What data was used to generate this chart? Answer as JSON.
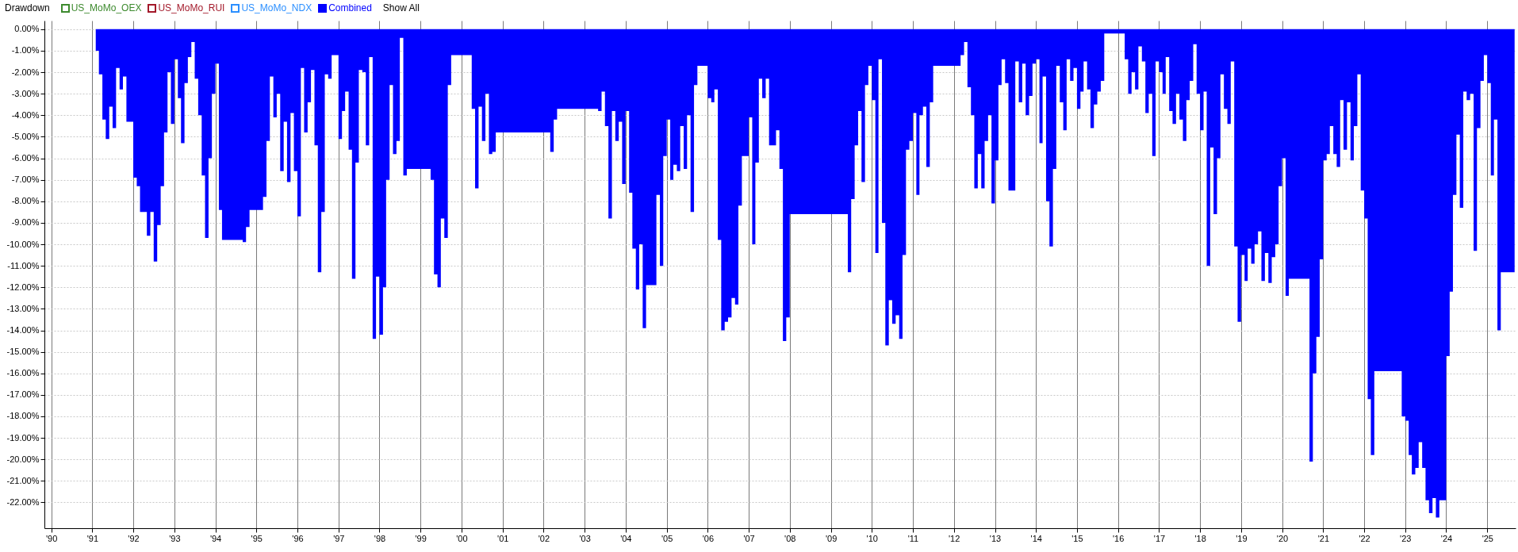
{
  "chart_data": {
    "type": "area",
    "title": "Drawdown",
    "annotations": [
      "Show All"
    ],
    "x": [
      "1991-02",
      "1991-03",
      "1991-04",
      "1991-05",
      "1991-06",
      "1991-07",
      "1991-08",
      "1991-09",
      "1991-10",
      "1991-11",
      "1992-01",
      "1992-02",
      "1992-03",
      "1992-05",
      "1992-06",
      "1992-07",
      "1992-08",
      "1992-09",
      "1992-10",
      "1992-11",
      "1992-12",
      "1993-01",
      "1993-02",
      "1993-03",
      "1993-04",
      "1993-05",
      "1993-06",
      "1993-07",
      "1993-08",
      "1993-09",
      "1993-10",
      "1993-11",
      "1993-12",
      "1994-01",
      "1994-02",
      "1994-03",
      "1994-09",
      "1994-10",
      "1994-11",
      "1995-03",
      "1995-04",
      "1995-05",
      "1995-06",
      "1995-07",
      "1995-08",
      "1995-09",
      "1995-10",
      "1995-11",
      "1995-12",
      "1996-01",
      "1996-02",
      "1996-03",
      "1996-04",
      "1996-05",
      "1996-06",
      "1996-07",
      "1996-08",
      "1996-09",
      "1996-10",
      "1996-11",
      "1997-01",
      "1997-02",
      "1997-03",
      "1997-04",
      "1997-05",
      "1997-06",
      "1997-07",
      "1997-08",
      "1997-09",
      "1997-10",
      "1997-11",
      "1997-12",
      "1998-01",
      "1998-02",
      "1998-03",
      "1998-04",
      "1998-05",
      "1998-06",
      "1998-07",
      "1998-08",
      "1998-09",
      "1999-04",
      "1999-05",
      "1999-06",
      "1999-07",
      "1999-08",
      "1999-09",
      "1999-10",
      "2000-04",
      "2000-05",
      "2000-06",
      "2000-07",
      "2000-08",
      "2000-09",
      "2000-10",
      "2000-11",
      "2002-03",
      "2002-04",
      "2002-05",
      "2003-05",
      "2003-06",
      "2003-07",
      "2003-08",
      "2003-09",
      "2003-10",
      "2003-11",
      "2003-12",
      "2004-01",
      "2004-02",
      "2004-03",
      "2004-04",
      "2004-05",
      "2004-06",
      "2004-07",
      "2004-10",
      "2004-11",
      "2004-12",
      "2005-01",
      "2005-02",
      "2005-03",
      "2005-04",
      "2005-05",
      "2005-06",
      "2005-07",
      "2005-08",
      "2005-09",
      "2005-10",
      "2006-01",
      "2006-02",
      "2006-03",
      "2006-04",
      "2006-05",
      "2006-06",
      "2006-07",
      "2006-08",
      "2006-09",
      "2006-10",
      "2006-11",
      "2007-01",
      "2007-02",
      "2007-03",
      "2007-04",
      "2007-05",
      "2007-06",
      "2007-07",
      "2007-09",
      "2007-10",
      "2007-11",
      "2007-12",
      "2008-01",
      "2009-06",
      "2009-07",
      "2009-08",
      "2009-09",
      "2009-10",
      "2009-11",
      "2009-12",
      "2010-01",
      "2010-02",
      "2010-03",
      "2010-04",
      "2010-05",
      "2010-06",
      "2010-07",
      "2010-08",
      "2010-09",
      "2010-10",
      "2010-11",
      "2010-12",
      "2011-01",
      "2011-02",
      "2011-03",
      "2011-04",
      "2011-05",
      "2011-06",
      "2011-07",
      "2012-03",
      "2012-04",
      "2012-05",
      "2012-06",
      "2012-07",
      "2012-08",
      "2012-09",
      "2012-10",
      "2012-11",
      "2012-12",
      "2013-01",
      "2013-02",
      "2013-03",
      "2013-04",
      "2013-05",
      "2013-07",
      "2013-08",
      "2013-09",
      "2013-10",
      "2013-11",
      "2013-12",
      "2014-01",
      "2014-02",
      "2014-03",
      "2014-04",
      "2014-05",
      "2014-06",
      "2014-07",
      "2014-08",
      "2014-09",
      "2014-10",
      "2014-11",
      "2014-12",
      "2015-01",
      "2015-02",
      "2015-03",
      "2015-04",
      "2015-05",
      "2015-06",
      "2015-07",
      "2015-08",
      "2015-09",
      "2016-03",
      "2016-04",
      "2016-05",
      "2016-06",
      "2016-07",
      "2016-08",
      "2016-09",
      "2016-10",
      "2016-11",
      "2016-12",
      "2017-01",
      "2017-02",
      "2017-03",
      "2017-04",
      "2017-05",
      "2017-06",
      "2017-07",
      "2017-08",
      "2017-09",
      "2017-10",
      "2017-11",
      "2017-12",
      "2018-01",
      "2018-02",
      "2018-03",
      "2018-04",
      "2018-05",
      "2018-06",
      "2018-07",
      "2018-08",
      "2018-09",
      "2018-10",
      "2018-11",
      "2018-12",
      "2019-01",
      "2019-02",
      "2019-03",
      "2019-04",
      "2019-05",
      "2019-06",
      "2019-07",
      "2019-08",
      "2019-09",
      "2019-10",
      "2019-11",
      "2019-12",
      "2020-01",
      "2020-02",
      "2020-03",
      "2020-09",
      "2020-10",
      "2020-11",
      "2020-12",
      "2021-01",
      "2021-02",
      "2021-03",
      "2021-04",
      "2021-05",
      "2021-06",
      "2021-07",
      "2021-08",
      "2021-09",
      "2021-10",
      "2021-11",
      "2021-12",
      "2022-01",
      "2022-02",
      "2022-03",
      "2022-04",
      "2022-12",
      "2023-01",
      "2023-02",
      "2023-03",
      "2023-04",
      "2023-05",
      "2023-06",
      "2023-07",
      "2023-08",
      "2023-09",
      "2023-10",
      "2023-11",
      "2024-01",
      "2024-02",
      "2024-03",
      "2024-04",
      "2024-05",
      "2024-06",
      "2024-07",
      "2024-08",
      "2024-09",
      "2024-10",
      "2024-11",
      "2024-12",
      "2025-01",
      "2025-02",
      "2025-03",
      "2025-04",
      "2025-05",
      "2025-09"
    ],
    "series": [
      {
        "name": "US_MoMo_OEX",
        "color": "#3d8a2e",
        "values": [
          null,
          null,
          null,
          null,
          null,
          null,
          null,
          null,
          null,
          null,
          null,
          null,
          null,
          null,
          null,
          null,
          null,
          null,
          null,
          null,
          null,
          null,
          null,
          null,
          null,
          null,
          null,
          null,
          null,
          null,
          null,
          null,
          null,
          null,
          null,
          null,
          null,
          null,
          null,
          null,
          null,
          null,
          null,
          null,
          null,
          null,
          null,
          null,
          null,
          null,
          null,
          null,
          null,
          null,
          null,
          null,
          null,
          null,
          null,
          null,
          null,
          null,
          null,
          null,
          null,
          null,
          null,
          null,
          null,
          null,
          null,
          null,
          null,
          null,
          null,
          null,
          null,
          null,
          null,
          null,
          null,
          null,
          null,
          null,
          null,
          null,
          null,
          null,
          null,
          null,
          null,
          null,
          null,
          null,
          null,
          null,
          null,
          null,
          null,
          null,
          null,
          null,
          null,
          null,
          null,
          null,
          null,
          null,
          null,
          null,
          null,
          null,
          null,
          null,
          null,
          null,
          null,
          null,
          null,
          null,
          null,
          null,
          null,
          null,
          null,
          null,
          null,
          null,
          null,
          null,
          null,
          null,
          null,
          null,
          null,
          null,
          null,
          null,
          null,
          null,
          null,
          null,
          null,
          null,
          null,
          null,
          null,
          null,
          null,
          null,
          null,
          null,
          null,
          null,
          null,
          null,
          null,
          null,
          null,
          null,
          null,
          null,
          null,
          null,
          null,
          null,
          null,
          null,
          null,
          null,
          null,
          null,
          null,
          null,
          null,
          null,
          null,
          null,
          null,
          null,
          null,
          null,
          null,
          null,
          null,
          null,
          null,
          null,
          null,
          null,
          null,
          null,
          null,
          null,
          null,
          null,
          null,
          null,
          null,
          null,
          null,
          null,
          null,
          null,
          null,
          null,
          null,
          null,
          null,
          null,
          null,
          null,
          null,
          null,
          null,
          null,
          null,
          null,
          null,
          null,
          null,
          null,
          null,
          null,
          null,
          null,
          null,
          null,
          null,
          null,
          null,
          null,
          null,
          null,
          null,
          null,
          null,
          null,
          null,
          null,
          null,
          null,
          null,
          null,
          null,
          null,
          null,
          null,
          null,
          null,
          null,
          null,
          null,
          null,
          null,
          null,
          null,
          null,
          null,
          null,
          null,
          null,
          null,
          null,
          null,
          null,
          null,
          null,
          null,
          null,
          null,
          null,
          null,
          null,
          null,
          null,
          null,
          null,
          null,
          null,
          null,
          null,
          null,
          null,
          null,
          null,
          null,
          null,
          null,
          null,
          null,
          null,
          null,
          null,
          null,
          null,
          null,
          null,
          null,
          null,
          null,
          null,
          null,
          null,
          null,
          null,
          null,
          null,
          null,
          null,
          null,
          null,
          null,
          null,
          null,
          null,
          null
        ]
      },
      {
        "name": "US_MoMo_RUI",
        "color": "#a3192a",
        "values": [
          null,
          null,
          null,
          null,
          null,
          null,
          null,
          null,
          null,
          null,
          null,
          null,
          null,
          null,
          null,
          null,
          null,
          null,
          null,
          null,
          null,
          null,
          null,
          null,
          null,
          null,
          null,
          null,
          null,
          null,
          null,
          null,
          null,
          null,
          null,
          null,
          null,
          null,
          null,
          null,
          null,
          null,
          null,
          null,
          null,
          null,
          null,
          null,
          null,
          null,
          null,
          null,
          null,
          null,
          null,
          null,
          null,
          null,
          null,
          null,
          null,
          null,
          null,
          null,
          null,
          null,
          null,
          null,
          null,
          null,
          null,
          null,
          null,
          null,
          null,
          null,
          null,
          null,
          null,
          null,
          null,
          null,
          null,
          null,
          null,
          null,
          null,
          null,
          null,
          null,
          null,
          null,
          null,
          null,
          null,
          null,
          null,
          null,
          null,
          null,
          null,
          null,
          null,
          null,
          null,
          null,
          null,
          null,
          null,
          null,
          null,
          null,
          null,
          null,
          null,
          null,
          null,
          null,
          null,
          null,
          null,
          null,
          null,
          null,
          null,
          null,
          null,
          null,
          null,
          null,
          null,
          null,
          null,
          null,
          null,
          null,
          null,
          null,
          null,
          null,
          null,
          null,
          null,
          null,
          null,
          null,
          null,
          null,
          null,
          null,
          null,
          null,
          null,
          null,
          null,
          null,
          null,
          null,
          null,
          null,
          null,
          null,
          null,
          null,
          null,
          null,
          null,
          null,
          null,
          null,
          null,
          null,
          null,
          null,
          null,
          null,
          null,
          null,
          null,
          null,
          null,
          null,
          null,
          null,
          null,
          null,
          null,
          null,
          null,
          null,
          null,
          null,
          null,
          null,
          null,
          null,
          null,
          null,
          null,
          null,
          null,
          null,
          null,
          null,
          null,
          null,
          null,
          null,
          null,
          null,
          null,
          null,
          null,
          null,
          null,
          null,
          null,
          null,
          null,
          null,
          null,
          null,
          null,
          null,
          null,
          null,
          null,
          null,
          null,
          null,
          null,
          null,
          null,
          null,
          null,
          null,
          null,
          null,
          null,
          null,
          null,
          null,
          null,
          null,
          null,
          null,
          null,
          null,
          null,
          null,
          null,
          null,
          null,
          null,
          null,
          null,
          null,
          null,
          null,
          null,
          null,
          null,
          null,
          null,
          null,
          null,
          null,
          null,
          null,
          null,
          null,
          null,
          null,
          null,
          null,
          null,
          null,
          null,
          null,
          null,
          null,
          null,
          null,
          null,
          null,
          null,
          null,
          null,
          null,
          null,
          null,
          null,
          null,
          null,
          null,
          null,
          null,
          null,
          null,
          null,
          null,
          null,
          null,
          null,
          null,
          null,
          null,
          null,
          null,
          null,
          null,
          null,
          null,
          null,
          null,
          null,
          null
        ]
      },
      {
        "name": "US_MoMo_NDX",
        "color": "#2b8fff",
        "values": [
          null,
          null,
          null,
          null,
          null,
          null,
          null,
          null,
          null,
          null,
          null,
          null,
          null,
          null,
          null,
          null,
          null,
          null,
          null,
          null,
          null,
          null,
          null,
          null,
          null,
          null,
          null,
          null,
          null,
          null,
          null,
          null,
          null,
          null,
          null,
          null,
          null,
          null,
          null,
          null,
          null,
          null,
          null,
          null,
          null,
          null,
          null,
          null,
          null,
          null,
          null,
          null,
          null,
          null,
          null,
          null,
          null,
          null,
          null,
          null,
          null,
          null,
          null,
          null,
          null,
          null,
          null,
          null,
          null,
          null,
          null,
          null,
          null,
          null,
          null,
          null,
          null,
          null,
          null,
          null,
          null,
          null,
          null,
          null,
          null,
          null,
          null,
          null,
          null,
          null,
          null,
          null,
          null,
          null,
          null,
          null,
          null,
          null,
          null,
          null,
          null,
          null,
          null,
          null,
          null,
          null,
          null,
          null,
          null,
          null,
          null,
          null,
          null,
          null,
          null,
          null,
          null,
          null,
          null,
          null,
          null,
          null,
          null,
          null,
          null,
          null,
          null,
          null,
          null,
          null,
          null,
          null,
          null,
          null,
          null,
          null,
          null,
          null,
          null,
          null,
          null,
          null,
          null,
          null,
          null,
          null,
          null,
          null,
          null,
          null,
          null,
          null,
          null,
          null,
          null,
          null,
          null,
          null,
          null,
          null,
          null,
          null,
          null,
          null,
          null,
          null,
          null,
          null,
          null,
          null,
          null,
          null,
          null,
          null,
          null,
          null,
          null,
          null,
          null,
          null,
          null,
          null,
          null,
          null,
          null,
          null,
          null,
          null,
          null,
          null,
          null,
          null,
          null,
          null,
          null,
          null,
          null,
          null,
          null,
          null,
          null,
          null,
          null,
          null,
          null,
          null,
          null,
          null,
          null,
          null,
          null,
          null,
          null,
          null,
          null,
          null,
          null,
          null,
          null,
          null,
          null,
          null,
          null,
          null,
          null,
          null,
          null,
          null,
          null,
          null,
          null,
          null,
          null,
          null,
          null,
          null,
          null,
          null,
          null,
          null,
          null,
          null,
          null,
          null,
          null,
          null,
          null,
          null,
          null,
          null,
          null,
          null,
          null,
          null,
          null,
          null,
          null,
          null,
          null,
          null,
          null,
          null,
          null,
          null,
          null,
          null,
          null,
          null,
          null,
          null,
          null,
          null,
          null,
          null,
          null,
          null,
          null,
          null,
          null,
          null,
          null,
          null,
          null,
          null,
          null,
          null,
          null,
          null,
          null,
          null,
          null,
          null,
          null,
          null,
          null,
          null,
          null,
          null,
          null,
          null,
          null,
          null,
          null,
          null,
          null,
          null,
          null,
          null,
          null,
          null,
          null,
          null,
          null,
          null,
          null,
          null,
          null
        ]
      },
      {
        "name": "Combined",
        "color": "#0000ff",
        "values": [
          -1.0,
          -2.1,
          -4.2,
          -5.1,
          -3.6,
          -4.6,
          -1.8,
          -2.8,
          -2.2,
          -4.3,
          -6.9,
          -7.3,
          -8.5,
          -9.6,
          -8.5,
          -10.8,
          -9.1,
          -7.3,
          -4.8,
          -2.0,
          -4.4,
          -1.4,
          -3.2,
          -5.3,
          -2.5,
          -1.3,
          -0.6,
          -2.3,
          -4.0,
          -6.8,
          -9.7,
          -6.0,
          -3.0,
          -1.6,
          -8.4,
          -9.8,
          -9.9,
          -9.2,
          -8.4,
          -7.8,
          -5.2,
          -2.2,
          -4.1,
          -3.0,
          -6.6,
          -4.3,
          -7.1,
          -3.9,
          -6.6,
          -8.7,
          -1.8,
          -4.8,
          -3.4,
          -1.9,
          -5.4,
          -11.3,
          -8.5,
          -2.1,
          -2.3,
          -1.2,
          -5.1,
          -3.8,
          -2.9,
          -5.6,
          -11.6,
          -6.2,
          -1.9,
          -2.0,
          -5.4,
          -1.3,
          -14.4,
          -11.5,
          -14.2,
          -12.0,
          -7.0,
          -2.6,
          -5.8,
          -5.2,
          -0.4,
          -6.8,
          -6.5,
          -7.0,
          -11.4,
          -12.0,
          -8.8,
          -9.7,
          -2.6,
          -1.2,
          -3.7,
          -7.4,
          -3.6,
          -5.2,
          -3.0,
          -5.8,
          -5.7,
          -4.8,
          -5.7,
          -4.2,
          -3.7,
          -3.8,
          -2.9,
          -4.5,
          -8.8,
          -3.8,
          -5.2,
          -4.3,
          -7.2,
          -3.8,
          -7.6,
          -10.2,
          -12.1,
          -10.0,
          -13.9,
          -11.9,
          -7.7,
          -11.0,
          -5.9,
          -4.2,
          -7.0,
          -6.3,
          -6.6,
          -4.5,
          -6.5,
          -4.0,
          -8.5,
          -2.6,
          -1.7,
          -3.2,
          -3.4,
          -2.8,
          -9.8,
          -14.0,
          -13.6,
          -13.4,
          -12.5,
          -12.8,
          -8.2,
          -5.9,
          -4.1,
          -10.0,
          -6.2,
          -2.3,
          -3.2,
          -2.3,
          -5.4,
          -4.7,
          -6.5,
          -14.5,
          -13.4,
          -8.6,
          -11.3,
          -7.9,
          -5.4,
          -3.8,
          -7.1,
          -2.6,
          -1.7,
          -3.3,
          -10.4,
          -1.4,
          -9.0,
          -14.7,
          -12.6,
          -13.7,
          -13.3,
          -14.4,
          -10.5,
          -5.6,
          -5.2,
          -3.9,
          -7.7,
          -4.0,
          -3.6,
          -6.4,
          -3.4,
          -1.7,
          -1.2,
          -0.6,
          -2.7,
          -4.0,
          -7.4,
          -5.8,
          -7.4,
          -5.2,
          -4.0,
          -8.1,
          -6.1,
          -2.6,
          -1.4,
          -2.5,
          -7.5,
          -1.5,
          -3.4,
          -1.6,
          -4.0,
          -3.1,
          -1.6,
          -1.4,
          -5.3,
          -2.2,
          -8.0,
          -10.1,
          -6.5,
          -1.7,
          -3.4,
          -4.7,
          -1.4,
          -2.4,
          -1.8,
          -3.7,
          -2.9,
          -1.5,
          -2.8,
          -4.6,
          -3.5,
          -2.9,
          -2.4,
          -0.2,
          -1.4,
          -3.0,
          -2.0,
          -2.8,
          -0.8,
          -1.5,
          -3.9,
          -3.0,
          -5.9,
          -1.5,
          -2.0,
          -3.0,
          -1.3,
          -3.8,
          -4.4,
          -3.0,
          -4.2,
          -5.2,
          -3.3,
          -2.4,
          -0.7,
          -3.0,
          -4.7,
          -2.9,
          -11.0,
          -5.5,
          -8.6,
          -6.0,
          -2.1,
          -3.7,
          -4.4,
          -1.5,
          -10.1,
          -13.6,
          -10.5,
          -11.7,
          -10.2,
          -10.9,
          -10.0,
          -9.4,
          -11.7,
          -10.4,
          -11.8,
          -10.6,
          -10.0,
          -7.3,
          -6.0,
          -12.4,
          -11.6,
          -20.1,
          -16.0,
          -14.3,
          -10.7,
          -6.1,
          -5.8,
          -4.5,
          -5.8,
          -6.4,
          -3.3,
          -5.6,
          -3.4,
          -6.1,
          -4.5,
          -2.1,
          -7.5,
          -8.8,
          -17.2,
          -19.8,
          -15.9,
          -18.0,
          -18.2,
          -19.8,
          -20.7,
          -20.4,
          -19.2,
          -20.4,
          -21.9,
          -22.5,
          -21.8,
          -22.7,
          -21.9,
          -15.2,
          -12.2,
          -7.7,
          -4.9,
          -8.3,
          -2.9,
          -3.3,
          -3.0,
          -10.3,
          -4.6,
          -2.4,
          -1.2,
          -2.5,
          -6.8,
          -4.2,
          -14.0,
          -11.3,
          -9.4
        ]
      }
    ],
    "xlim": [
      "1989-11",
      "2025-09-10"
    ],
    "xticks": [
      {
        "value": "1990",
        "label": "'90"
      },
      {
        "value": "1991",
        "label": "'91"
      },
      {
        "value": "1992",
        "label": "'92"
      },
      {
        "value": "1993",
        "label": "'93"
      },
      {
        "value": "1994",
        "label": "'94"
      },
      {
        "value": "1995",
        "label": "'95"
      },
      {
        "value": "1996",
        "label": "'96"
      },
      {
        "value": "1997",
        "label": "'97"
      },
      {
        "value": "1998",
        "label": "'98"
      },
      {
        "value": "1999",
        "label": "'99"
      },
      {
        "value": "2000",
        "label": "'00"
      },
      {
        "value": "2001",
        "label": "'01"
      },
      {
        "value": "2002",
        "label": "'02"
      },
      {
        "value": "2003",
        "label": "'03"
      },
      {
        "value": "2004",
        "label": "'04"
      },
      {
        "value": "2005",
        "label": "'05"
      },
      {
        "value": "2006",
        "label": "'06"
      },
      {
        "value": "2007",
        "label": "'07"
      },
      {
        "value": "2008",
        "label": "'08"
      },
      {
        "value": "2009",
        "label": "'09"
      },
      {
        "value": "2010",
        "label": "'10"
      },
      {
        "value": "2011",
        "label": "'11"
      },
      {
        "value": "2012",
        "label": "'12"
      },
      {
        "value": "2013",
        "label": "'13"
      },
      {
        "value": "2014",
        "label": "'14"
      },
      {
        "value": "2015",
        "label": "'15"
      },
      {
        "value": "2016",
        "label": "'16"
      },
      {
        "value": "2017",
        "label": "'17"
      },
      {
        "value": "2018",
        "label": "'18"
      },
      {
        "value": "2019",
        "label": "'19"
      },
      {
        "value": "2020",
        "label": "'20"
      },
      {
        "value": "2021",
        "label": "'21"
      },
      {
        "value": "2022",
        "label": "'22"
      },
      {
        "value": "2023",
        "label": "'23"
      },
      {
        "value": "2024",
        "label": "'24"
      },
      {
        "value": "2025",
        "label": "'25"
      }
    ],
    "ylim": [
      -23.2,
      0.4
    ],
    "yticks": [
      {
        "value": 0,
        "label": "0.00%"
      },
      {
        "value": -1,
        "label": "-1.00%"
      },
      {
        "value": -2,
        "label": "-2.00%"
      },
      {
        "value": -3,
        "label": "-3.00%"
      },
      {
        "value": -4,
        "label": "-4.00%"
      },
      {
        "value": -5,
        "label": "-5.00%"
      },
      {
        "value": -6,
        "label": "-6.00%"
      },
      {
        "value": -7,
        "label": "-7.00%"
      },
      {
        "value": -8,
        "label": "-8.00%"
      },
      {
        "value": -9,
        "label": "-9.00%"
      },
      {
        "value": -10,
        "label": "-10.00%"
      },
      {
        "value": -11,
        "label": "-11.00%"
      },
      {
        "value": -12,
        "label": "-12.00%"
      },
      {
        "value": -13,
        "label": "-13.00%"
      },
      {
        "value": -14,
        "label": "-14.00%"
      },
      {
        "value": -15,
        "label": "-15.00%"
      },
      {
        "value": -16,
        "label": "-16.00%"
      },
      {
        "value": -17,
        "label": "-17.00%"
      },
      {
        "value": -18,
        "label": "-18.00%"
      },
      {
        "value": -19,
        "label": "-19.00%"
      },
      {
        "value": -20,
        "label": "-20.00%"
      },
      {
        "value": -21,
        "label": "-21.00%"
      },
      {
        "value": -22,
        "label": "-22.00%"
      }
    ],
    "grid": true,
    "legend": "top left"
  }
}
